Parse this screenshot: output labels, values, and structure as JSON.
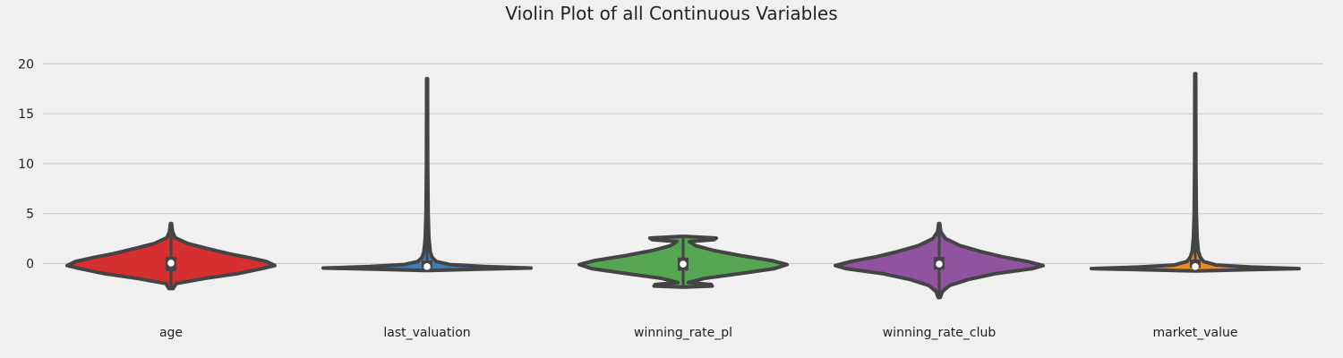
{
  "chart_data": {
    "type": "violin",
    "title": "Violin Plot of all Continuous Variables",
    "xlabel": "",
    "ylabel": "",
    "ylim": [
      -3.9,
      22.8
    ],
    "yticks": [
      0,
      5,
      10,
      15,
      20
    ],
    "grid": "horizontal",
    "categories": [
      "age",
      "last_valuation",
      "winning_rate_pl",
      "winning_rate_club",
      "market_value"
    ],
    "colors": [
      "#d62f2f",
      "#3f7eb7",
      "#55a553",
      "#9053a0",
      "#f08a1e"
    ],
    "edge_color": "#444444",
    "violins": [
      {
        "name": "age",
        "min": -2.5,
        "q1": -0.75,
        "median": 0.05,
        "q3": 0.65,
        "max": 4.0,
        "profile": [
          {
            "y": -2.5,
            "w": 0.02
          },
          {
            "y": -2.0,
            "w": 0.05
          },
          {
            "y": -1.5,
            "w": 0.32
          },
          {
            "y": -1.0,
            "w": 0.65
          },
          {
            "y": -0.5,
            "w": 0.88
          },
          {
            "y": -0.2,
            "w": 1.0
          },
          {
            "y": 0.2,
            "w": 0.92
          },
          {
            "y": 0.6,
            "w": 0.75
          },
          {
            "y": 1.0,
            "w": 0.55
          },
          {
            "y": 1.5,
            "w": 0.35
          },
          {
            "y": 2.0,
            "w": 0.16
          },
          {
            "y": 2.6,
            "w": 0.04
          },
          {
            "y": 3.2,
            "w": 0.015
          },
          {
            "y": 4.0,
            "w": 0.005
          }
        ]
      },
      {
        "name": "last_valuation",
        "min": -0.5,
        "q1": -0.45,
        "median": -0.3,
        "q3": 0.3,
        "max": 18.5,
        "profile": [
          {
            "y": -0.7,
            "w": 0.02
          },
          {
            "y": -0.55,
            "w": 0.55
          },
          {
            "y": -0.45,
            "w": 1.0
          },
          {
            "y": -0.3,
            "w": 0.55
          },
          {
            "y": -0.1,
            "w": 0.22
          },
          {
            "y": 0.2,
            "w": 0.09
          },
          {
            "y": 0.6,
            "w": 0.05
          },
          {
            "y": 1.2,
            "w": 0.03
          },
          {
            "y": 2.5,
            "w": 0.018
          },
          {
            "y": 5.0,
            "w": 0.01
          },
          {
            "y": 10.0,
            "w": 0.006
          },
          {
            "y": 18.5,
            "w": 0.004
          }
        ]
      },
      {
        "name": "winning_rate_pl",
        "min": -2.2,
        "q1": -0.7,
        "median": -0.05,
        "q3": 0.6,
        "max": 2.6,
        "profile": [
          {
            "y": -2.35,
            "w": 0.02
          },
          {
            "y": -2.25,
            "w": 0.28
          },
          {
            "y": -2.1,
            "w": 0.27
          },
          {
            "y": -1.9,
            "w": 0.05
          },
          {
            "y": -1.5,
            "w": 0.2
          },
          {
            "y": -1.0,
            "w": 0.55
          },
          {
            "y": -0.5,
            "w": 0.88
          },
          {
            "y": -0.1,
            "w": 1.0
          },
          {
            "y": 0.3,
            "w": 0.85
          },
          {
            "y": 0.8,
            "w": 0.55
          },
          {
            "y": 1.3,
            "w": 0.3
          },
          {
            "y": 1.8,
            "w": 0.12
          },
          {
            "y": 2.2,
            "w": 0.06
          },
          {
            "y": 2.4,
            "w": 0.3
          },
          {
            "y": 2.55,
            "w": 0.32
          },
          {
            "y": 2.72,
            "w": 0.02
          }
        ]
      },
      {
        "name": "winning_rate_club",
        "min": -3.4,
        "q1": -0.6,
        "median": -0.05,
        "q3": 0.65,
        "max": 4.0,
        "profile": [
          {
            "y": -3.4,
            "w": 0.01
          },
          {
            "y": -2.8,
            "w": 0.03
          },
          {
            "y": -2.2,
            "w": 0.1
          },
          {
            "y": -1.6,
            "w": 0.28
          },
          {
            "y": -1.0,
            "w": 0.55
          },
          {
            "y": -0.5,
            "w": 0.9
          },
          {
            "y": -0.2,
            "w": 1.0
          },
          {
            "y": 0.2,
            "w": 0.85
          },
          {
            "y": 0.7,
            "w": 0.6
          },
          {
            "y": 1.2,
            "w": 0.4
          },
          {
            "y": 1.8,
            "w": 0.2
          },
          {
            "y": 2.5,
            "w": 0.06
          },
          {
            "y": 3.2,
            "w": 0.015
          },
          {
            "y": 4.0,
            "w": 0.005
          }
        ]
      },
      {
        "name": "market_value",
        "min": -0.55,
        "q1": -0.45,
        "median": -0.3,
        "q3": 0.4,
        "max": 19.0,
        "profile": [
          {
            "y": -0.75,
            "w": 0.02
          },
          {
            "y": -0.6,
            "w": 0.55
          },
          {
            "y": -0.5,
            "w": 1.0
          },
          {
            "y": -0.35,
            "w": 0.55
          },
          {
            "y": -0.15,
            "w": 0.2
          },
          {
            "y": 0.2,
            "w": 0.08
          },
          {
            "y": 0.6,
            "w": 0.05
          },
          {
            "y": 1.2,
            "w": 0.03
          },
          {
            "y": 2.5,
            "w": 0.018
          },
          {
            "y": 5.0,
            "w": 0.01
          },
          {
            "y": 10.0,
            "w": 0.006
          },
          {
            "y": 19.0,
            "w": 0.004
          }
        ]
      }
    ]
  }
}
